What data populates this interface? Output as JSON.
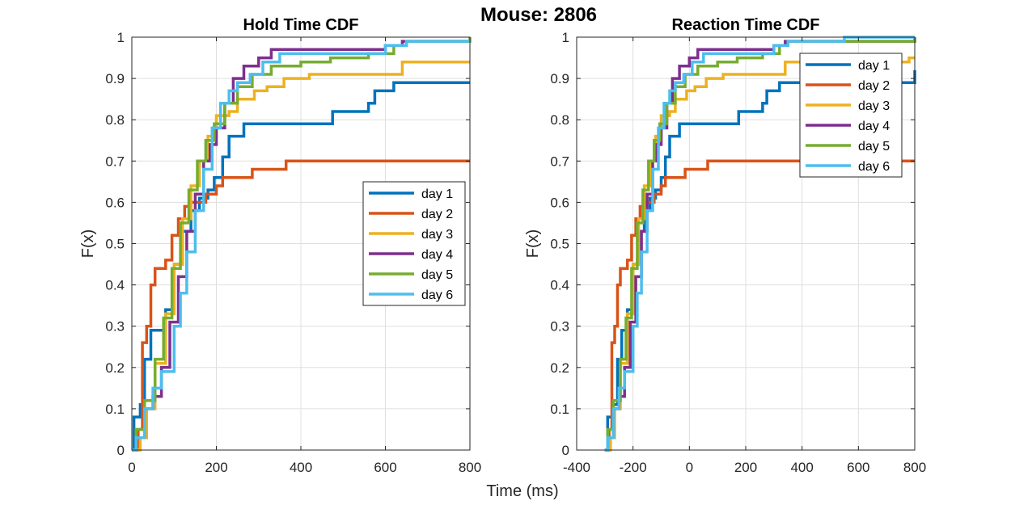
{
  "figure": {
    "supertitle": "Mouse: 2806",
    "xlabel": "Time (ms)"
  },
  "chart_data": [
    {
      "type": "line",
      "step": true,
      "title": "Hold Time CDF",
      "xlabel": "",
      "ylabel": "F(x)",
      "xlim": [
        0,
        800
      ],
      "ylim": [
        0,
        1
      ],
      "xticks": [
        0,
        200,
        400,
        600,
        800
      ],
      "xtick_labels": [
        "0",
        "200",
        "400",
        "600",
        "800"
      ],
      "yticks": [
        0,
        0.1,
        0.2,
        0.3,
        0.4,
        0.5,
        0.6,
        0.7,
        0.8,
        0.9,
        1
      ],
      "ytick_labels": [
        "0",
        "0.1",
        "0.2",
        "0.3",
        "0.4",
        "0.5",
        "0.6",
        "0.7",
        "0.8",
        "0.9",
        "1"
      ],
      "grid": true,
      "legend_position": "center-right",
      "series": [
        {
          "name": "day 1",
          "color": "#0072BD",
          "points": [
            [
              0,
              0
            ],
            [
              5,
              0.08
            ],
            [
              20,
              0.11
            ],
            [
              30,
              0.22
            ],
            [
              45,
              0.29
            ],
            [
              60,
              0.29
            ],
            [
              80,
              0.34
            ],
            [
              100,
              0.45
            ],
            [
              120,
              0.53
            ],
            [
              140,
              0.58
            ],
            [
              160,
              0.61
            ],
            [
              180,
              0.63
            ],
            [
              195,
              0.66
            ],
            [
              215,
              0.71
            ],
            [
              230,
              0.76
            ],
            [
              265,
              0.79
            ],
            [
              360,
              0.79
            ],
            [
              475,
              0.82
            ],
            [
              560,
              0.84
            ],
            [
              575,
              0.87
            ],
            [
              620,
              0.89
            ],
            [
              800,
              0.89
            ]
          ]
        },
        {
          "name": "day 2",
          "color": "#D95319",
          "points": [
            [
              0,
              0
            ],
            [
              15,
              0.05
            ],
            [
              25,
              0.26
            ],
            [
              35,
              0.3
            ],
            [
              45,
              0.4
            ],
            [
              55,
              0.44
            ],
            [
              80,
              0.46
            ],
            [
              95,
              0.52
            ],
            [
              110,
              0.56
            ],
            [
              125,
              0.59
            ],
            [
              140,
              0.6
            ],
            [
              175,
              0.62
            ],
            [
              200,
              0.64
            ],
            [
              215,
              0.66
            ],
            [
              285,
              0.68
            ],
            [
              365,
              0.7
            ],
            [
              800,
              0.7
            ]
          ]
        },
        {
          "name": "day 3",
          "color": "#EDB120",
          "points": [
            [
              0,
              0
            ],
            [
              20,
              0.03
            ],
            [
              35,
              0.1
            ],
            [
              55,
              0.21
            ],
            [
              80,
              0.33
            ],
            [
              100,
              0.45
            ],
            [
              120,
              0.56
            ],
            [
              140,
              0.64
            ],
            [
              160,
              0.7
            ],
            [
              180,
              0.76
            ],
            [
              200,
              0.81
            ],
            [
              230,
              0.82
            ],
            [
              250,
              0.85
            ],
            [
              290,
              0.87
            ],
            [
              320,
              0.88
            ],
            [
              360,
              0.9
            ],
            [
              420,
              0.91
            ],
            [
              640,
              0.94
            ],
            [
              800,
              0.94
            ]
          ]
        },
        {
          "name": "day 4",
          "color": "#7E2F8E",
          "points": [
            [
              0,
              0
            ],
            [
              10,
              0.03
            ],
            [
              30,
              0.1
            ],
            [
              50,
              0.13
            ],
            [
              70,
              0.2
            ],
            [
              90,
              0.31
            ],
            [
              110,
              0.42
            ],
            [
              130,
              0.53
            ],
            [
              150,
              0.62
            ],
            [
              170,
              0.7
            ],
            [
              185,
              0.74
            ],
            [
              200,
              0.78
            ],
            [
              220,
              0.84
            ],
            [
              240,
              0.9
            ],
            [
              265,
              0.93
            ],
            [
              300,
              0.95
            ],
            [
              330,
              0.97
            ],
            [
              600,
              0.98
            ],
            [
              640,
              0.99
            ],
            [
              800,
              0.99
            ]
          ]
        },
        {
          "name": "day 5",
          "color": "#77AC30",
          "points": [
            [
              0,
              0
            ],
            [
              10,
              0.05
            ],
            [
              30,
              0.12
            ],
            [
              55,
              0.22
            ],
            [
              75,
              0.32
            ],
            [
              95,
              0.44
            ],
            [
              115,
              0.55
            ],
            [
              135,
              0.63
            ],
            [
              155,
              0.7
            ],
            [
              175,
              0.75
            ],
            [
              195,
              0.79
            ],
            [
              220,
              0.84
            ],
            [
              250,
              0.88
            ],
            [
              285,
              0.91
            ],
            [
              330,
              0.93
            ],
            [
              400,
              0.94
            ],
            [
              470,
              0.95
            ],
            [
              560,
              0.96
            ],
            [
              620,
              0.98
            ],
            [
              650,
              0.99
            ],
            [
              800,
              1.0
            ]
          ]
        },
        {
          "name": "day 6",
          "color": "#4DBEEE",
          "points": [
            [
              0,
              0
            ],
            [
              10,
              0.03
            ],
            [
              30,
              0.1
            ],
            [
              50,
              0.15
            ],
            [
              70,
              0.19
            ],
            [
              100,
              0.3
            ],
            [
              115,
              0.38
            ],
            [
              130,
              0.48
            ],
            [
              150,
              0.58
            ],
            [
              170,
              0.68
            ],
            [
              190,
              0.78
            ],
            [
              210,
              0.84
            ],
            [
              230,
              0.87
            ],
            [
              250,
              0.89
            ],
            [
              280,
              0.91
            ],
            [
              310,
              0.94
            ],
            [
              350,
              0.96
            ],
            [
              600,
              0.98
            ],
            [
              650,
              0.99
            ],
            [
              800,
              0.99
            ]
          ]
        }
      ]
    },
    {
      "type": "line",
      "step": true,
      "title": "Reaction Time CDF",
      "xlabel": "",
      "ylabel": "F(x)",
      "xlim": [
        -400,
        800
      ],
      "ylim": [
        0,
        1
      ],
      "xticks": [
        -400,
        -200,
        0,
        200,
        400,
        600,
        800
      ],
      "xtick_labels": [
        "-400",
        "-200",
        "0",
        "200",
        "400",
        "600",
        "800"
      ],
      "yticks": [
        0,
        0.1,
        0.2,
        0.3,
        0.4,
        0.5,
        0.6,
        0.7,
        0.8,
        0.9,
        1
      ],
      "ytick_labels": [
        "0",
        "0.1",
        "0.2",
        "0.3",
        "0.4",
        "0.5",
        "0.6",
        "0.7",
        "0.8",
        "0.9",
        "1"
      ],
      "grid": true,
      "legend_position": "top-right",
      "series": [
        {
          "name": "day 1",
          "color": "#0072BD",
          "points": [
            [
              -300,
              0
            ],
            [
              -290,
              0.08
            ],
            [
              -270,
              0.11
            ],
            [
              -255,
              0.22
            ],
            [
              -240,
              0.29
            ],
            [
              -220,
              0.34
            ],
            [
              -200,
              0.45
            ],
            [
              -180,
              0.53
            ],
            [
              -160,
              0.58
            ],
            [
              -140,
              0.61
            ],
            [
              -120,
              0.63
            ],
            [
              -100,
              0.66
            ],
            [
              -85,
              0.71
            ],
            [
              -70,
              0.76
            ],
            [
              -35,
              0.79
            ],
            [
              60,
              0.79
            ],
            [
              175,
              0.82
            ],
            [
              260,
              0.84
            ],
            [
              275,
              0.87
            ],
            [
              320,
              0.89
            ],
            [
              350,
              0.89
            ],
            [
              800,
              0.92
            ]
          ]
        },
        {
          "name": "day 2",
          "color": "#D95319",
          "points": [
            [
              -300,
              0
            ],
            [
              -285,
              0.05
            ],
            [
              -275,
              0.26
            ],
            [
              -265,
              0.3
            ],
            [
              -255,
              0.4
            ],
            [
              -245,
              0.44
            ],
            [
              -220,
              0.46
            ],
            [
              -205,
              0.52
            ],
            [
              -190,
              0.56
            ],
            [
              -175,
              0.59
            ],
            [
              -160,
              0.6
            ],
            [
              -125,
              0.62
            ],
            [
              -100,
              0.64
            ],
            [
              -85,
              0.66
            ],
            [
              -15,
              0.68
            ],
            [
              65,
              0.7
            ],
            [
              800,
              0.7
            ]
          ]
        },
        {
          "name": "day 3",
          "color": "#EDB120",
          "points": [
            [
              -300,
              0
            ],
            [
              -280,
              0.03
            ],
            [
              -265,
              0.1
            ],
            [
              -245,
              0.21
            ],
            [
              -220,
              0.33
            ],
            [
              -200,
              0.45
            ],
            [
              -180,
              0.56
            ],
            [
              -160,
              0.64
            ],
            [
              -140,
              0.7
            ],
            [
              -120,
              0.76
            ],
            [
              -100,
              0.81
            ],
            [
              -70,
              0.82
            ],
            [
              -50,
              0.85
            ],
            [
              -10,
              0.87
            ],
            [
              20,
              0.88
            ],
            [
              60,
              0.9
            ],
            [
              120,
              0.91
            ],
            [
              340,
              0.94
            ],
            [
              780,
              0.95
            ],
            [
              800,
              0.95
            ]
          ]
        },
        {
          "name": "day 4",
          "color": "#7E2F8E",
          "points": [
            [
              -300,
              0
            ],
            [
              -290,
              0.03
            ],
            [
              -270,
              0.1
            ],
            [
              -250,
              0.13
            ],
            [
              -230,
              0.2
            ],
            [
              -210,
              0.31
            ],
            [
              -190,
              0.42
            ],
            [
              -170,
              0.53
            ],
            [
              -150,
              0.62
            ],
            [
              -130,
              0.7
            ],
            [
              -115,
              0.74
            ],
            [
              -100,
              0.78
            ],
            [
              -80,
              0.84
            ],
            [
              -60,
              0.9
            ],
            [
              -35,
              0.93
            ],
            [
              0,
              0.95
            ],
            [
              30,
              0.97
            ],
            [
              300,
              0.98
            ],
            [
              340,
              0.99
            ],
            [
              800,
              1.0
            ]
          ]
        },
        {
          "name": "day 5",
          "color": "#77AC30",
          "points": [
            [
              -300,
              0
            ],
            [
              -290,
              0.05
            ],
            [
              -270,
              0.12
            ],
            [
              -245,
              0.22
            ],
            [
              -225,
              0.32
            ],
            [
              -205,
              0.44
            ],
            [
              -185,
              0.55
            ],
            [
              -165,
              0.63
            ],
            [
              -145,
              0.7
            ],
            [
              -125,
              0.75
            ],
            [
              -105,
              0.79
            ],
            [
              -80,
              0.84
            ],
            [
              -50,
              0.88
            ],
            [
              -15,
              0.91
            ],
            [
              30,
              0.93
            ],
            [
              100,
              0.94
            ],
            [
              170,
              0.95
            ],
            [
              260,
              0.96
            ],
            [
              320,
              0.98
            ],
            [
              350,
              0.99
            ],
            [
              800,
              1.0
            ]
          ]
        },
        {
          "name": "day 6",
          "color": "#4DBEEE",
          "points": [
            [
              -300,
              0
            ],
            [
              -290,
              0.03
            ],
            [
              -270,
              0.1
            ],
            [
              -250,
              0.15
            ],
            [
              -230,
              0.19
            ],
            [
              -200,
              0.3
            ],
            [
              -185,
              0.38
            ],
            [
              -170,
              0.48
            ],
            [
              -150,
              0.58
            ],
            [
              -130,
              0.68
            ],
            [
              -110,
              0.78
            ],
            [
              -90,
              0.84
            ],
            [
              -70,
              0.87
            ],
            [
              -50,
              0.89
            ],
            [
              -20,
              0.91
            ],
            [
              10,
              0.94
            ],
            [
              50,
              0.96
            ],
            [
              300,
              0.98
            ],
            [
              350,
              0.99
            ],
            [
              550,
              1.0
            ],
            [
              800,
              1.0
            ]
          ]
        }
      ]
    }
  ]
}
